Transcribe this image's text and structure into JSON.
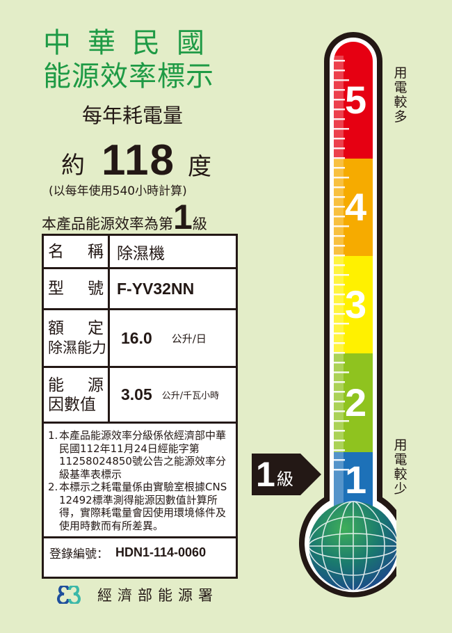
{
  "header": {
    "title_line1": "中華民國",
    "title_line2": "能源效率標示"
  },
  "consumption": {
    "label": "每年耗電量",
    "prefix": "約",
    "value": "118",
    "unit": "度",
    "basis": "(以每年使用540小時計算)"
  },
  "grade_statement": {
    "prefix": "本產品能源效率為第",
    "grade": "1",
    "suffix": "級"
  },
  "spec_table": {
    "rows": [
      {
        "label_a": "名",
        "label_b": "稱",
        "value": "除濕機"
      },
      {
        "label_a": "型",
        "label_b": "號",
        "value": "F-YV32NN"
      },
      {
        "label_a": "額",
        "label_b": "定",
        "label_line2": "除濕能力",
        "value": "16.0",
        "unit": "公升/日"
      },
      {
        "label_a": "能",
        "label_b": "源",
        "label_line2": "因數值",
        "value": "3.05",
        "unit": "公升/千瓦小時"
      }
    ],
    "notes": [
      {
        "num": "1.",
        "text": "本產品能源效率分級係依經濟部中華民國112年11月24日經能字第11258024850號公告之能源效率分級基準表標示"
      },
      {
        "num": "2.",
        "text": "本標示之耗電量係由實驗室根據CNS 12492標準測得能源因數值計算所得，實際耗電量會因使用環境條件及使用時數而有所差異。"
      }
    ],
    "registration_label": "登錄編號：",
    "registration_number": "HDN1-114-0060"
  },
  "thermometer": {
    "levels": [
      {
        "grade": "5",
        "color": "#e60012"
      },
      {
        "grade": "4",
        "color": "#f6ab00"
      },
      {
        "grade": "3",
        "color": "#fff100"
      },
      {
        "grade": "2",
        "color": "#8fc31f"
      },
      {
        "grade": "1",
        "color": "#1d71b8"
      }
    ],
    "top_caption": "用電較多",
    "bottom_caption": "用電較少",
    "current_grade": "1",
    "current_grade_suffix": "級"
  },
  "footer": {
    "agency": "經濟部能源署"
  },
  "colors": {
    "background": "#e3edc8",
    "title_green": "#1e9a45"
  }
}
